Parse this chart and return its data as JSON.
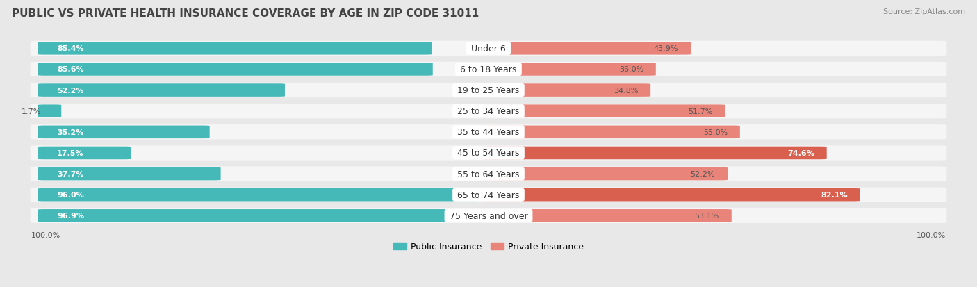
{
  "title": "PUBLIC VS PRIVATE HEALTH INSURANCE COVERAGE BY AGE IN ZIP CODE 31011",
  "source": "Source: ZipAtlas.com",
  "categories": [
    "Under 6",
    "6 to 18 Years",
    "19 to 25 Years",
    "25 to 34 Years",
    "35 to 44 Years",
    "45 to 54 Years",
    "55 to 64 Years",
    "65 to 74 Years",
    "75 Years and over"
  ],
  "public_values": [
    85.4,
    85.6,
    52.2,
    1.7,
    35.2,
    17.5,
    37.7,
    96.0,
    96.9
  ],
  "private_values": [
    43.9,
    36.0,
    34.8,
    51.7,
    55.0,
    74.6,
    52.2,
    82.1,
    53.1
  ],
  "public_color": "#45b8b8",
  "private_color": "#e8847a",
  "private_color_dark": "#d9604f",
  "bg_color": "#e8e8e8",
  "row_bg_color": "#f5f5f5",
  "title_color": "#444444",
  "label_dark": "#555555",
  "legend_public": "Public Insurance",
  "legend_private": "Private Insurance",
  "max_value": 100.0,
  "title_fontsize": 11,
  "source_fontsize": 8,
  "label_fontsize": 8,
  "cat_fontsize": 9
}
